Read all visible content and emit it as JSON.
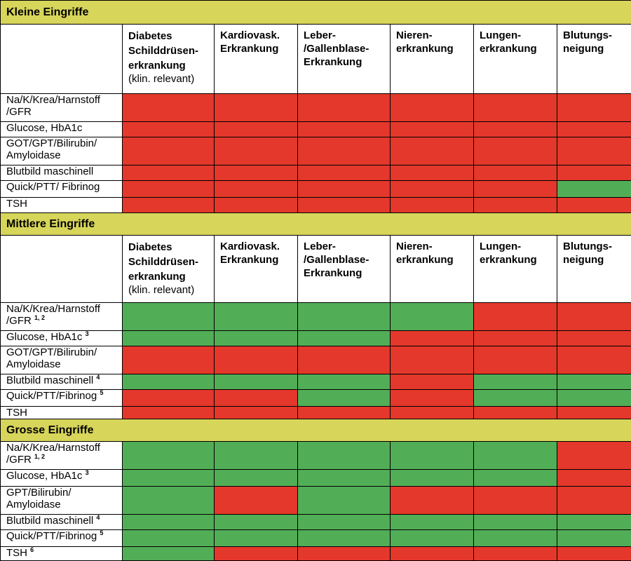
{
  "columns": [
    {
      "lines": [
        "Diabetes",
        "Schilddrüsen-",
        "erkrankung"
      ],
      "sub": "(klin. relevant)"
    },
    {
      "lines": [
        "Kardiovask.",
        "Erkrankung"
      ]
    },
    {
      "lines": [
        "Leber-",
        "/Gallenblase-",
        "Erkrankung"
      ]
    },
    {
      "lines": [
        "Nieren-",
        "erkrankung"
      ]
    },
    {
      "lines": [
        "Lungen-",
        "erkrankung"
      ]
    },
    {
      "lines": [
        "Blutungs-",
        "neigung"
      ]
    }
  ],
  "colors": {
    "red": "#e3382b",
    "green": "#52ad57",
    "section": "#d7d55a"
  },
  "sections": [
    {
      "title": "Kleine Eingriffe",
      "rows": [
        {
          "label": [
            "Na/K/Krea/Harnstoff",
            "/GFR"
          ],
          "sup": "",
          "cells": [
            "red",
            "red",
            "red",
            "red",
            "red",
            "red"
          ]
        },
        {
          "label": [
            "Glucose, HbA1c"
          ],
          "sup": "",
          "cells": [
            "red",
            "red",
            "red",
            "red",
            "red",
            "red"
          ]
        },
        {
          "label": [
            "GOT/GPT/Bilirubin/",
            "Amyloidase"
          ],
          "sup": "",
          "cells": [
            "red",
            "red",
            "red",
            "red",
            "red",
            "red"
          ]
        },
        {
          "label": [
            "Blutbild maschinell"
          ],
          "sup": "",
          "cells": [
            "red",
            "red",
            "red",
            "red",
            "red",
            "red"
          ]
        },
        {
          "label": [
            "Quick/PTT/ Fibrinog"
          ],
          "sup": "",
          "cells": [
            "red",
            "red",
            "red",
            "red",
            "red",
            "green"
          ]
        },
        {
          "label": [
            "TSH"
          ],
          "sup": "",
          "cells": [
            "red",
            "red",
            "red",
            "red",
            "red",
            "red"
          ]
        }
      ]
    },
    {
      "title": "Mittlere Eingriffe",
      "rows": [
        {
          "label": [
            "Na/K/Krea/Harnstoff",
            "/GFR"
          ],
          "sup": "1, 2",
          "cells": [
            "green",
            "green",
            "green",
            "green",
            "red",
            "red"
          ]
        },
        {
          "label": [
            "Glucose, HbA1c"
          ],
          "sup": "3",
          "cells": [
            "green",
            "green",
            "green",
            "red",
            "red",
            "red"
          ]
        },
        {
          "label": [
            "GOT/GPT/Bilirubin/",
            "Amyloidase"
          ],
          "sup": "",
          "cells": [
            "red",
            "red",
            "red",
            "red",
            "red",
            "red"
          ]
        },
        {
          "label": [
            "Blutbild maschinell"
          ],
          "sup": "4",
          "cells": [
            "green",
            "green",
            "green",
            "red",
            "green",
            "green"
          ]
        },
        {
          "label": [
            "Quick/PTT/Fibrinog"
          ],
          "sup": "5",
          "cells": [
            "red",
            "red",
            "green",
            "red",
            "green",
            "green"
          ]
        },
        {
          "label": [
            "TSH"
          ],
          "sup": "",
          "cells": [
            "red",
            "red",
            "red",
            "red",
            "red",
            "red"
          ]
        }
      ]
    },
    {
      "title": "Grosse Eingriffe",
      "rows": [
        {
          "label": [
            "Na/K/Krea/Harnstoff",
            "/GFR"
          ],
          "sup": "1, 2",
          "cells": [
            "green",
            "green",
            "green",
            "green",
            "green",
            "red"
          ]
        },
        {
          "label": [
            "Glucose, HbA1c"
          ],
          "sup": "3",
          "cells": [
            "green",
            "green",
            "green",
            "green",
            "green",
            "red"
          ]
        },
        {
          "label": [
            "GPT/Bilirubin/",
            "Amyloidase"
          ],
          "sup": "",
          "cells": [
            "green",
            "red",
            "green",
            "red",
            "red",
            "red"
          ]
        },
        {
          "label": [
            "Blutbild maschinell"
          ],
          "sup": "4",
          "cells": [
            "green",
            "green",
            "green",
            "green",
            "green",
            "green"
          ]
        },
        {
          "label": [
            "Quick/PTT/Fibrinog"
          ],
          "sup": "5",
          "cells": [
            "green",
            "green",
            "green",
            "green",
            "green",
            "green"
          ]
        },
        {
          "label": [
            "TSH"
          ],
          "sup": "6",
          "cells": [
            "green",
            "red",
            "red",
            "red",
            "red",
            "red"
          ]
        }
      ]
    }
  ]
}
